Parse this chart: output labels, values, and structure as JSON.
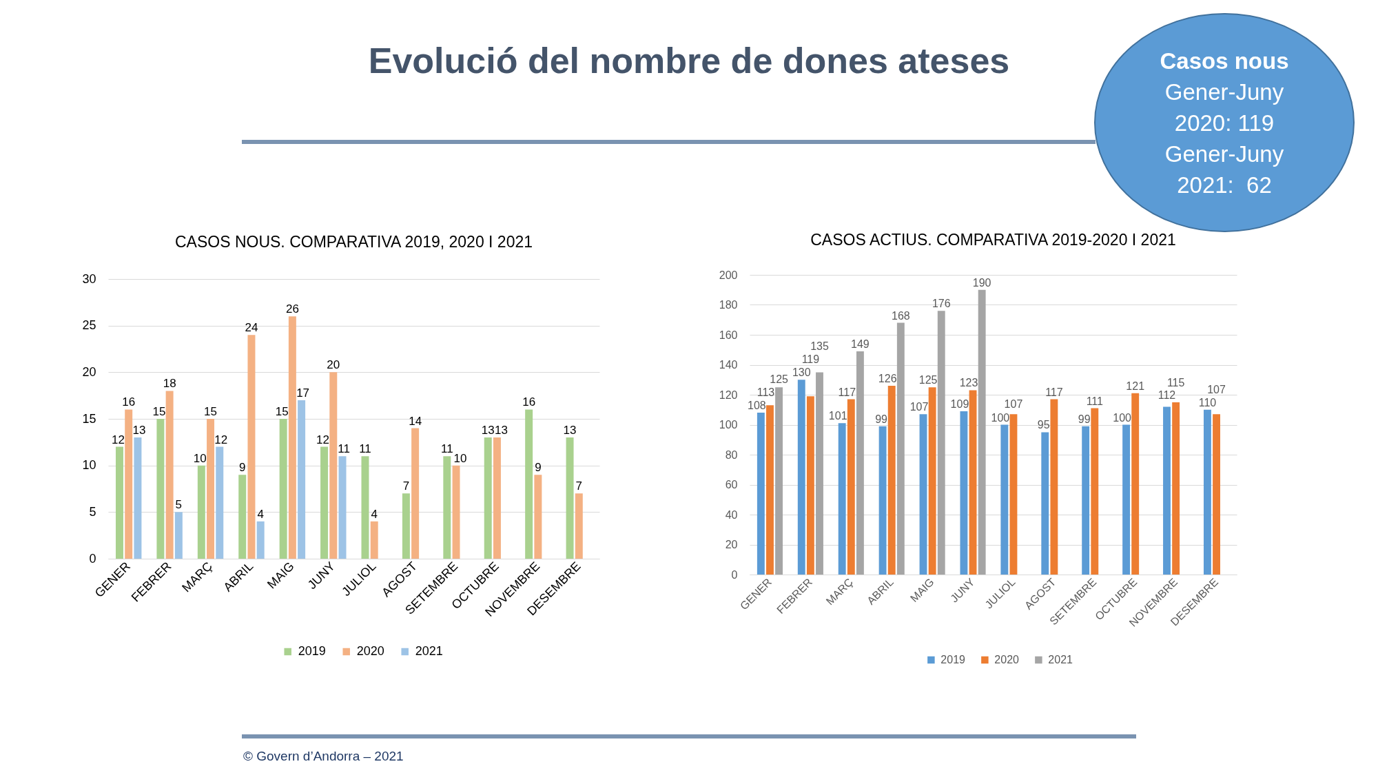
{
  "chart_data": [
    {
      "type": "other",
      "title": "Evolució del nombre de dones ateses",
      "annotations": [
        "© Govern d’Andorra – 2021"
      ]
    },
    {
      "type": "other",
      "title": "Casos nous",
      "annotations": [
        "Gener-Juny 2020: 119",
        "Gener-Juny 2021:  62"
      ]
    },
    {
      "type": "bar",
      "title": "CASOS NOUS. COMPARATIVA 2019, 2020 I 2021",
      "categories": [
        "GENER",
        "FEBRER",
        "MARÇ",
        "ABRIL",
        "MAIG",
        "JUNY",
        "JULIOL",
        "AGOST",
        "SETEMBRE",
        "OCTUBRE",
        "NOVEMBRE",
        "DESEMBRE"
      ],
      "series": [
        {
          "name": "2019",
          "color": "#a9d18e",
          "values": [
            12,
            15,
            10,
            9,
            15,
            12,
            11,
            7,
            11,
            13,
            16,
            13
          ]
        },
        {
          "name": "2020",
          "color": "#f4b183",
          "values": [
            16,
            18,
            15,
            24,
            26,
            20,
            4,
            14,
            10,
            13,
            9,
            7
          ]
        },
        {
          "name": "2021",
          "color": "#9dc3e6",
          "values": [
            13,
            5,
            12,
            4,
            17,
            11,
            null,
            null,
            null,
            null,
            null,
            null
          ]
        }
      ],
      "ylim": [
        0,
        30
      ],
      "yticks": [
        0,
        5,
        10,
        15,
        20,
        25,
        30
      ],
      "grid": "y",
      "legend": "bottom",
      "data_labels": true
    },
    {
      "type": "bar",
      "title": "CASOS ACTIUS. COMPARATIVA 2019-2020 I 2021",
      "categories": [
        "GENER",
        "FEBRER",
        "MARÇ",
        "ABRIL",
        "MAIG",
        "JUNY",
        "JULIOL",
        "AGOST",
        "SETEMBRE",
        "OCTUBRE",
        "NOVEMBRE",
        "DESEMBRE"
      ],
      "series": [
        {
          "name": "2019",
          "color": "#5b9bd5",
          "values": [
            108,
            130,
            101,
            99,
            107,
            109,
            100,
            95,
            99,
            100,
            112,
            110
          ]
        },
        {
          "name": "2020",
          "color": "#ed7d31",
          "values": [
            113,
            119,
            117,
            126,
            125,
            123,
            107,
            117,
            111,
            121,
            115,
            107
          ]
        },
        {
          "name": "2021",
          "color": "#a5a5a5",
          "values": [
            125,
            135,
            149,
            168,
            176,
            190,
            null,
            null,
            null,
            null,
            null,
            null
          ]
        }
      ],
      "ylim": [
        0,
        200
      ],
      "yticks": [
        0,
        20,
        40,
        60,
        80,
        100,
        120,
        140,
        160,
        180,
        200
      ],
      "grid": "y",
      "legend": "bottom",
      "data_labels": true
    }
  ]
}
